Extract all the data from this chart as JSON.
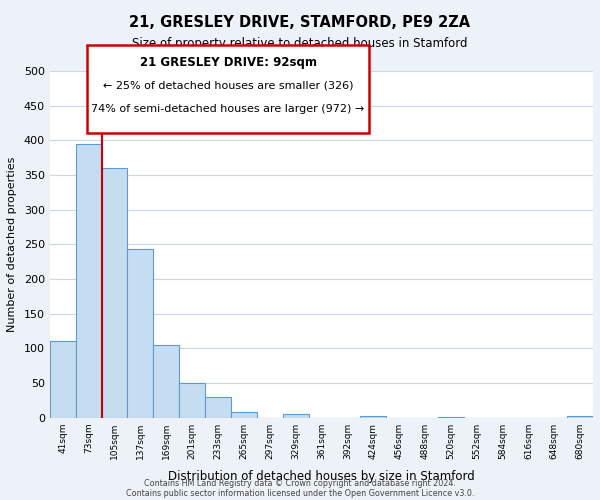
{
  "title": "21, GRESLEY DRIVE, STAMFORD, PE9 2ZA",
  "subtitle": "Size of property relative to detached houses in Stamford",
  "xlabel": "Distribution of detached houses by size in Stamford",
  "ylabel": "Number of detached properties",
  "bin_labels": [
    "41sqm",
    "73sqm",
    "105sqm",
    "137sqm",
    "169sqm",
    "201sqm",
    "233sqm",
    "265sqm",
    "297sqm",
    "329sqm",
    "361sqm",
    "392sqm",
    "424sqm",
    "456sqm",
    "488sqm",
    "520sqm",
    "552sqm",
    "584sqm",
    "616sqm",
    "648sqm",
    "680sqm"
  ],
  "bar_values": [
    110,
    395,
    360,
    243,
    105,
    50,
    30,
    8,
    0,
    5,
    0,
    0,
    2,
    0,
    0,
    1,
    0,
    0,
    0,
    0,
    2
  ],
  "bar_color": "#c5ddf0",
  "bar_edge_color": "#5b9bd5",
  "marker_line_color": "#cc0000",
  "ylim": [
    0,
    500
  ],
  "yticks": [
    0,
    50,
    100,
    150,
    200,
    250,
    300,
    350,
    400,
    450,
    500
  ],
  "annotation_title": "21 GRESLEY DRIVE: 92sqm",
  "annotation_line1": "← 25% of detached houses are smaller (326)",
  "annotation_line2": "74% of semi-detached houses are larger (972) →",
  "footer_line1": "Contains HM Land Registry data © Crown copyright and database right 2024.",
  "footer_line2": "Contains public sector information licensed under the Open Government Licence v3.0.",
  "bg_color": "#edf2f8",
  "plot_bg_color": "#ffffff",
  "grid_color": "#c8d8e8"
}
